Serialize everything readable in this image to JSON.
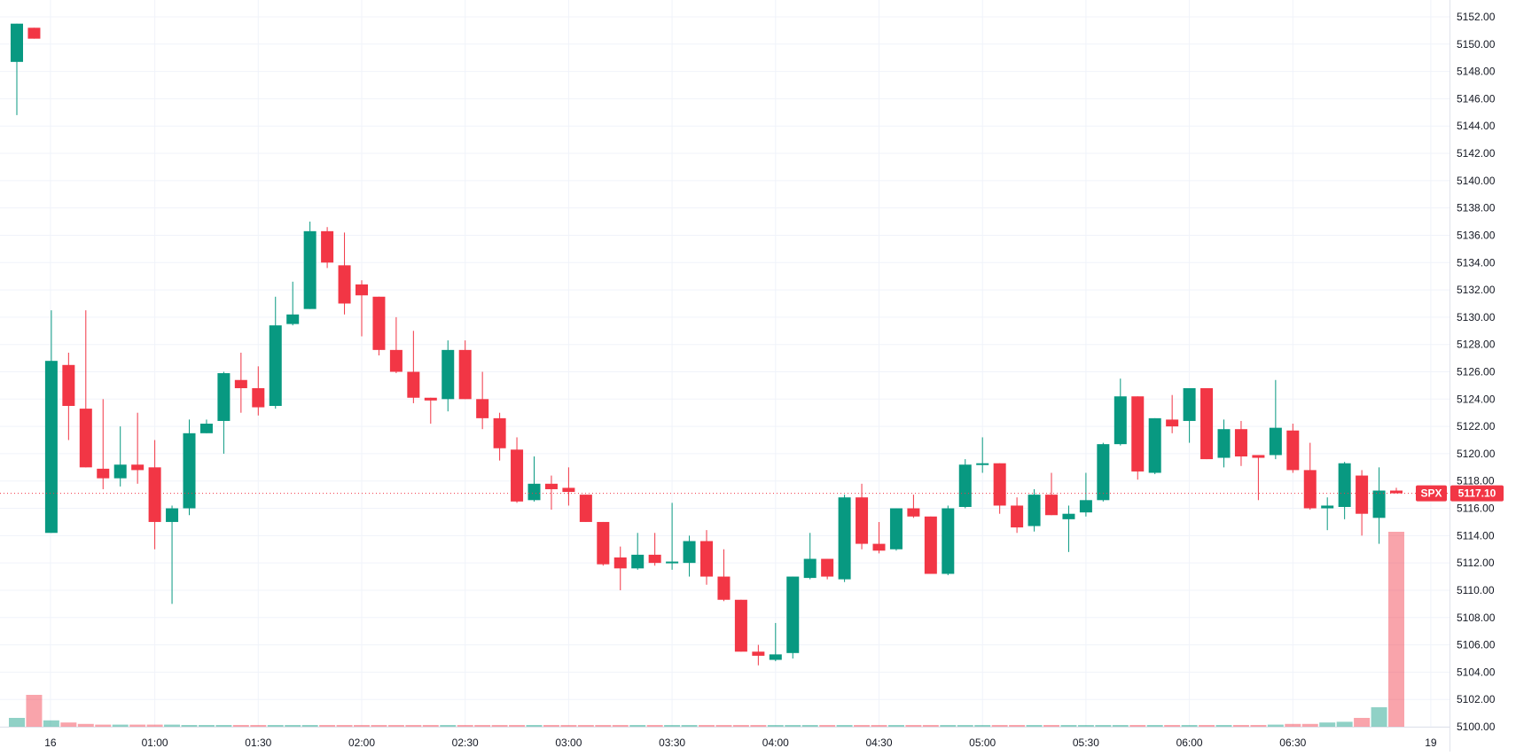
{
  "chart_data": {
    "type": "candlestick",
    "symbol": "SPX",
    "last_price": "5117.10",
    "ylim": [
      5099,
      5153
    ],
    "y_ticks": [
      "5100.00",
      "5102.00",
      "5104.00",
      "5106.00",
      "5108.00",
      "5110.00",
      "5112.00",
      "5114.00",
      "5116.00",
      "5118.00",
      "5120.00",
      "5122.00",
      "5124.00",
      "5126.00",
      "5128.00",
      "5130.00",
      "5132.00",
      "5134.00",
      "5136.00",
      "5138.00",
      "5140.00",
      "5142.00",
      "5144.00",
      "5146.00",
      "5148.00",
      "5150.00",
      "5152.00"
    ],
    "x_ticks": [
      {
        "label": "16",
        "index": 2
      },
      {
        "label": "01:00",
        "index": 8
      },
      {
        "label": "01:30",
        "index": 14
      },
      {
        "label": "02:00",
        "index": 20
      },
      {
        "label": "02:30",
        "index": 26
      },
      {
        "label": "03:00",
        "index": 32
      },
      {
        "label": "03:30",
        "index": 38
      },
      {
        "label": "04:00",
        "index": 44
      },
      {
        "label": "04:30",
        "index": 50
      },
      {
        "label": "05:00",
        "index": 56
      },
      {
        "label": "05:30",
        "index": 62
      },
      {
        "label": "06:00",
        "index": 68
      },
      {
        "label": "06:30",
        "index": 74
      },
      {
        "label": "19",
        "index": 82
      }
    ],
    "candles": [
      {
        "o": 5148.7,
        "h": 5151.5,
        "l": 5144.8,
        "c": 5151.5,
        "v": 0.25
      },
      {
        "o": 5151.2,
        "h": 5151.2,
        "l": 5150.4,
        "c": 5150.4,
        "v": 0.9
      },
      {
        "o": 5114.2,
        "h": 5130.5,
        "l": 5114.2,
        "c": 5126.8,
        "v": 0.18
      },
      {
        "o": 5126.5,
        "h": 5127.4,
        "l": 5121.0,
        "c": 5123.5,
        "v": 0.12
      },
      {
        "o": 5123.3,
        "h": 5130.5,
        "l": 5119.0,
        "c": 5119.0,
        "v": 0.08
      },
      {
        "o": 5118.9,
        "h": 5124.0,
        "l": 5117.4,
        "c": 5118.2,
        "v": 0.06
      },
      {
        "o": 5118.2,
        "h": 5122.0,
        "l": 5117.6,
        "c": 5119.2,
        "v": 0.06
      },
      {
        "o": 5119.2,
        "h": 5123.0,
        "l": 5117.8,
        "c": 5118.8,
        "v": 0.06
      },
      {
        "o": 5119.0,
        "h": 5121.0,
        "l": 5113.0,
        "c": 5115.0,
        "v": 0.06
      },
      {
        "o": 5115.0,
        "h": 5116.2,
        "l": 5109.0,
        "c": 5116.0,
        "v": 0.06
      },
      {
        "o": 5116.0,
        "h": 5122.5,
        "l": 5115.5,
        "c": 5121.5,
        "v": 0.05
      },
      {
        "o": 5121.5,
        "h": 5122.5,
        "l": 5121.5,
        "c": 5122.2,
        "v": 0.05
      },
      {
        "o": 5122.4,
        "h": 5126.0,
        "l": 5120.0,
        "c": 5125.9,
        "v": 0.05
      },
      {
        "o": 5125.4,
        "h": 5127.4,
        "l": 5123.0,
        "c": 5124.8,
        "v": 0.05
      },
      {
        "o": 5124.8,
        "h": 5126.4,
        "l": 5122.8,
        "c": 5123.4,
        "v": 0.05
      },
      {
        "o": 5123.5,
        "h": 5131.5,
        "l": 5123.3,
        "c": 5129.4,
        "v": 0.05
      },
      {
        "o": 5129.5,
        "h": 5132.6,
        "l": 5129.4,
        "c": 5130.2,
        "v": 0.05
      },
      {
        "o": 5130.6,
        "h": 5137.0,
        "l": 5130.6,
        "c": 5136.3,
        "v": 0.05
      },
      {
        "o": 5136.3,
        "h": 5136.6,
        "l": 5133.6,
        "c": 5134.0,
        "v": 0.05
      },
      {
        "o": 5133.8,
        "h": 5136.2,
        "l": 5130.2,
        "c": 5131.0,
        "v": 0.05
      },
      {
        "o": 5132.4,
        "h": 5132.7,
        "l": 5128.6,
        "c": 5131.6,
        "v": 0.05
      },
      {
        "o": 5131.5,
        "h": 5131.5,
        "l": 5127.2,
        "c": 5127.6,
        "v": 0.05
      },
      {
        "o": 5127.6,
        "h": 5130.0,
        "l": 5125.9,
        "c": 5126.0,
        "v": 0.05
      },
      {
        "o": 5126.0,
        "h": 5129.0,
        "l": 5123.7,
        "c": 5124.1,
        "v": 0.05
      },
      {
        "o": 5124.1,
        "h": 5124.1,
        "l": 5122.2,
        "c": 5123.9,
        "v": 0.05
      },
      {
        "o": 5124.0,
        "h": 5128.3,
        "l": 5123.1,
        "c": 5127.6,
        "v": 0.05
      },
      {
        "o": 5127.6,
        "h": 5128.3,
        "l": 5124.0,
        "c": 5124.0,
        "v": 0.05
      },
      {
        "o": 5124.0,
        "h": 5126.0,
        "l": 5121.8,
        "c": 5122.6,
        "v": 0.05
      },
      {
        "o": 5122.6,
        "h": 5123.0,
        "l": 5119.5,
        "c": 5120.4,
        "v": 0.05
      },
      {
        "o": 5120.3,
        "h": 5121.2,
        "l": 5116.4,
        "c": 5116.5,
        "v": 0.05
      },
      {
        "o": 5116.6,
        "h": 5119.8,
        "l": 5116.5,
        "c": 5117.8,
        "v": 0.05
      },
      {
        "o": 5117.8,
        "h": 5118.4,
        "l": 5115.9,
        "c": 5117.4,
        "v": 0.05
      },
      {
        "o": 5117.5,
        "h": 5119.0,
        "l": 5116.2,
        "c": 5117.2,
        "v": 0.05
      },
      {
        "o": 5117.0,
        "h": 5117.0,
        "l": 5115.0,
        "c": 5115.0,
        "v": 0.05
      },
      {
        "o": 5115.0,
        "h": 5115.0,
        "l": 5111.8,
        "c": 5111.9,
        "v": 0.05
      },
      {
        "o": 5112.4,
        "h": 5113.2,
        "l": 5110.0,
        "c": 5111.6,
        "v": 0.05
      },
      {
        "o": 5111.6,
        "h": 5114.2,
        "l": 5111.5,
        "c": 5112.6,
        "v": 0.05
      },
      {
        "o": 5112.6,
        "h": 5114.2,
        "l": 5111.8,
        "c": 5112.0,
        "v": 0.05
      },
      {
        "o": 5112.0,
        "h": 5116.4,
        "l": 5111.5,
        "c": 5112.1,
        "v": 0.05
      },
      {
        "o": 5112.0,
        "h": 5114.0,
        "l": 5111.0,
        "c": 5113.6,
        "v": 0.05
      },
      {
        "o": 5113.6,
        "h": 5114.4,
        "l": 5110.4,
        "c": 5111.0,
        "v": 0.05
      },
      {
        "o": 5111.0,
        "h": 5113.0,
        "l": 5109.2,
        "c": 5109.3,
        "v": 0.05
      },
      {
        "o": 5109.3,
        "h": 5109.3,
        "l": 5105.5,
        "c": 5105.5,
        "v": 0.05
      },
      {
        "o": 5105.5,
        "h": 5106.0,
        "l": 5104.5,
        "c": 5105.2,
        "v": 0.05
      },
      {
        "o": 5104.9,
        "h": 5107.6,
        "l": 5104.8,
        "c": 5105.3,
        "v": 0.05
      },
      {
        "o": 5105.4,
        "h": 5111.0,
        "l": 5105.0,
        "c": 5111.0,
        "v": 0.05
      },
      {
        "o": 5110.9,
        "h": 5114.2,
        "l": 5110.8,
        "c": 5112.3,
        "v": 0.05
      },
      {
        "o": 5112.3,
        "h": 5112.3,
        "l": 5110.8,
        "c": 5111.0,
        "v": 0.05
      },
      {
        "o": 5110.8,
        "h": 5117.0,
        "l": 5110.6,
        "c": 5116.8,
        "v": 0.05
      },
      {
        "o": 5116.8,
        "h": 5117.8,
        "l": 5113.0,
        "c": 5113.4,
        "v": 0.05
      },
      {
        "o": 5113.4,
        "h": 5115.0,
        "l": 5112.7,
        "c": 5112.9,
        "v": 0.05
      },
      {
        "o": 5113.0,
        "h": 5116.0,
        "l": 5112.9,
        "c": 5116.0,
        "v": 0.05
      },
      {
        "o": 5116.0,
        "h": 5117.0,
        "l": 5115.3,
        "c": 5115.4,
        "v": 0.05
      },
      {
        "o": 5115.4,
        "h": 5115.4,
        "l": 5111.2,
        "c": 5111.2,
        "v": 0.05
      },
      {
        "o": 5111.2,
        "h": 5116.2,
        "l": 5111.1,
        "c": 5116.0,
        "v": 0.05
      },
      {
        "o": 5116.1,
        "h": 5119.6,
        "l": 5116.0,
        "c": 5119.2,
        "v": 0.05
      },
      {
        "o": 5119.2,
        "h": 5121.2,
        "l": 5118.6,
        "c": 5119.3,
        "v": 0.05
      },
      {
        "o": 5119.3,
        "h": 5119.3,
        "l": 5115.6,
        "c": 5116.2,
        "v": 0.05
      },
      {
        "o": 5116.2,
        "h": 5116.8,
        "l": 5114.2,
        "c": 5114.6,
        "v": 0.05
      },
      {
        "o": 5114.7,
        "h": 5117.4,
        "l": 5114.3,
        "c": 5117.0,
        "v": 0.05
      },
      {
        "o": 5117.0,
        "h": 5118.6,
        "l": 5115.5,
        "c": 5115.5,
        "v": 0.05
      },
      {
        "o": 5115.2,
        "h": 5116.2,
        "l": 5112.8,
        "c": 5115.6,
        "v": 0.05
      },
      {
        "o": 5115.7,
        "h": 5118.6,
        "l": 5115.4,
        "c": 5116.6,
        "v": 0.05
      },
      {
        "o": 5116.6,
        "h": 5120.8,
        "l": 5116.5,
        "c": 5120.7,
        "v": 0.05
      },
      {
        "o": 5120.7,
        "h": 5125.5,
        "l": 5120.6,
        "c": 5124.2,
        "v": 0.05
      },
      {
        "o": 5124.2,
        "h": 5124.2,
        "l": 5118.1,
        "c": 5118.7,
        "v": 0.05
      },
      {
        "o": 5118.6,
        "h": 5122.6,
        "l": 5118.5,
        "c": 5122.6,
        "v": 0.05
      },
      {
        "o": 5122.5,
        "h": 5124.3,
        "l": 5121.5,
        "c": 5122.0,
        "v": 0.05
      },
      {
        "o": 5122.4,
        "h": 5124.8,
        "l": 5120.8,
        "c": 5124.8,
        "v": 0.05
      },
      {
        "o": 5124.8,
        "h": 5124.8,
        "l": 5119.6,
        "c": 5119.6,
        "v": 0.05
      },
      {
        "o": 5119.7,
        "h": 5122.5,
        "l": 5119.0,
        "c": 5121.8,
        "v": 0.05
      },
      {
        "o": 5121.8,
        "h": 5122.4,
        "l": 5119.1,
        "c": 5119.8,
        "v": 0.05
      },
      {
        "o": 5119.9,
        "h": 5119.9,
        "l": 5116.6,
        "c": 5119.7,
        "v": 0.05
      },
      {
        "o": 5119.9,
        "h": 5125.4,
        "l": 5119.6,
        "c": 5121.9,
        "v": 0.06
      },
      {
        "o": 5121.7,
        "h": 5122.2,
        "l": 5118.6,
        "c": 5118.8,
        "v": 0.08
      },
      {
        "o": 5118.8,
        "h": 5120.8,
        "l": 5115.9,
        "c": 5116.0,
        "v": 0.08
      },
      {
        "o": 5116.0,
        "h": 5116.8,
        "l": 5114.4,
        "c": 5116.2,
        "v": 0.12
      },
      {
        "o": 5116.1,
        "h": 5119.4,
        "l": 5115.2,
        "c": 5119.3,
        "v": 0.14
      },
      {
        "o": 5118.4,
        "h": 5118.8,
        "l": 5114.0,
        "c": 5115.6,
        "v": 0.25
      },
      {
        "o": 5115.3,
        "h": 5119.0,
        "l": 5113.4,
        "c": 5117.3,
        "v": 0.55
      },
      {
        "o": 5117.3,
        "h": 5117.5,
        "l": 5117.1,
        "c": 5117.1,
        "v": 5.5
      }
    ]
  }
}
